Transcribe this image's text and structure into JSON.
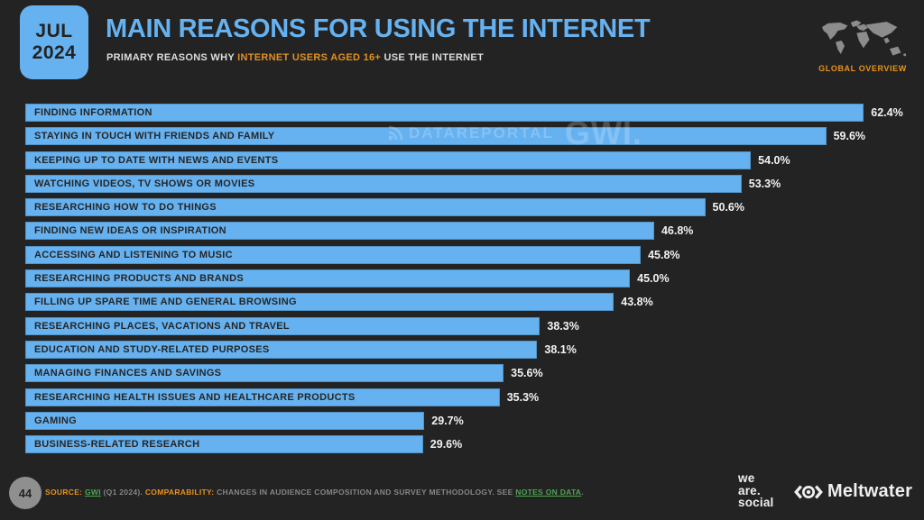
{
  "header": {
    "date_line1": "JUL",
    "date_line2": "2024",
    "title": "MAIN REASONS FOR USING THE INTERNET",
    "subtitle_prefix": "PRIMARY REASONS WHY ",
    "subtitle_highlight": "INTERNET USERS AGED 16+",
    "subtitle_suffix": " USE THE INTERNET",
    "global_overview": "GLOBAL OVERVIEW"
  },
  "watermark": {
    "dataportal": "DATAREPORTAL",
    "gwi": "GWI."
  },
  "chart_data": {
    "type": "bar",
    "orientation": "horizontal",
    "title": "MAIN REASONS FOR USING THE INTERNET",
    "xlim": [
      0,
      65
    ],
    "grid": false,
    "bar_color": "#66b2f0",
    "categories": [
      "FINDING INFORMATION",
      "STAYING IN TOUCH WITH FRIENDS AND FAMILY",
      "KEEPING UP TO DATE WITH NEWS AND EVENTS",
      "WATCHING VIDEOS, TV SHOWS OR MOVIES",
      "RESEARCHING HOW TO DO THINGS",
      "FINDING NEW IDEAS OR INSPIRATION",
      "ACCESSING AND LISTENING TO MUSIC",
      "RESEARCHING PRODUCTS AND BRANDS",
      "FILLING UP SPARE TIME AND GENERAL BROWSING",
      "RESEARCHING PLACES, VACATIONS AND TRAVEL",
      "EDUCATION AND STUDY-RELATED PURPOSES",
      "MANAGING FINANCES AND SAVINGS",
      "RESEARCHING HEALTH ISSUES AND HEALTHCARE PRODUCTS",
      "GAMING",
      "BUSINESS-RELATED RESEARCH"
    ],
    "values": [
      62.4,
      59.6,
      54.0,
      53.3,
      50.6,
      46.8,
      45.8,
      45.0,
      43.8,
      38.3,
      38.1,
      35.6,
      35.3,
      29.7,
      29.6
    ],
    "value_labels": [
      "62.4%",
      "59.6%",
      "54.0%",
      "53.3%",
      "50.6%",
      "46.8%",
      "45.8%",
      "45.0%",
      "43.8%",
      "38.3%",
      "38.1%",
      "35.6%",
      "35.3%",
      "29.7%",
      "29.6%"
    ]
  },
  "footer": {
    "page_number": "44",
    "source_label": "SOURCE:",
    "source_link": "GWI",
    "source_rest": " (Q1 2024). ",
    "comparability_label": "COMPARABILITY:",
    "comparability_text": " CHANGES IN AUDIENCE COMPOSITION AND SURVEY METHODOLOGY. SEE ",
    "notes_link": "NOTES ON DATA",
    "notes_period": ".",
    "was_line1": "we",
    "was_line2": "are.",
    "was_line3": "social",
    "meltwater": "Meltwater"
  },
  "colors": {
    "background": "#232323",
    "bar_blue": "#66b2f0",
    "title_blue": "#66b2f0",
    "accent_orange": "#e8931c",
    "link_green": "#4ca64f",
    "value_text": "#f2f2f2",
    "footnote_gray": "#868686"
  }
}
